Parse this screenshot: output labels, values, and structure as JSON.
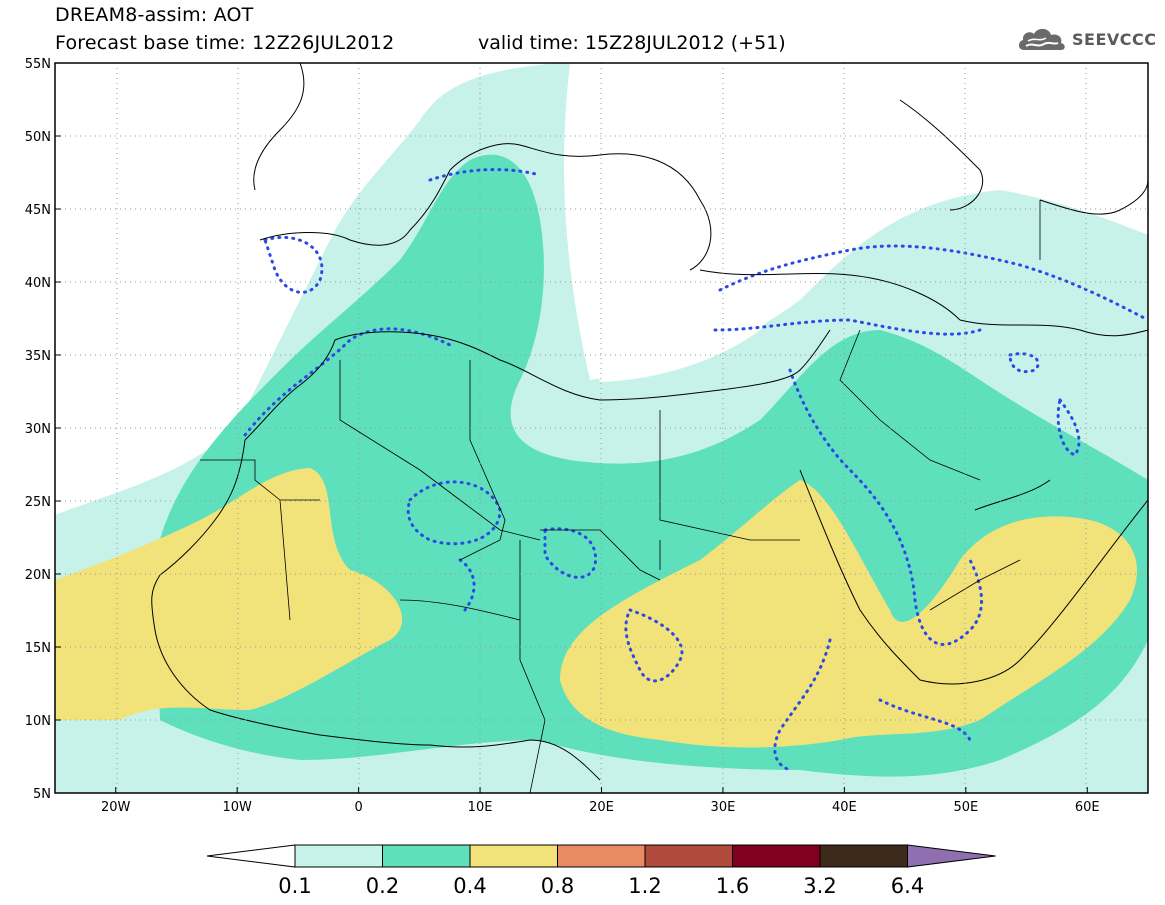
{
  "header": {
    "title": "DREAM8-assim: AOT",
    "base_time": "Forecast base time: 12Z26JUL2012",
    "valid_time": "valid time: 15Z28JUL2012 (+51)",
    "logo_text": "SEEVCCC",
    "logo_icon": "cloud-icon"
  },
  "map": {
    "lon_range": [
      -25,
      65
    ],
    "lat_range": [
      5,
      55
    ],
    "lon_ticks": [
      "20W",
      "10W",
      "0",
      "10E",
      "20E",
      "30E",
      "40E",
      "50E",
      "60E"
    ],
    "lon_tick_values": [
      -20,
      -10,
      0,
      10,
      20,
      30,
      40,
      50,
      60
    ],
    "lat_ticks": [
      "55N",
      "50N",
      "45N",
      "40N",
      "35N",
      "30N",
      "25N",
      "20N",
      "15N",
      "10N",
      "5N"
    ],
    "lat_tick_values": [
      55,
      50,
      45,
      40,
      35,
      30,
      25,
      20,
      15,
      10,
      5
    ],
    "grid": "dotted",
    "field": "AOT"
  },
  "legend": {
    "levels": [
      "0.1",
      "0.2",
      "0.4",
      "0.8",
      "1.2",
      "1.6",
      "3.2",
      "6.4"
    ],
    "colors": [
      "#ffffff",
      "#c6f2ea",
      "#5ee0bd",
      "#f2e27a",
      "#e98a62",
      "#b04a3a",
      "#800020",
      "#3d2a1a",
      "#8f6fb0"
    ]
  }
}
